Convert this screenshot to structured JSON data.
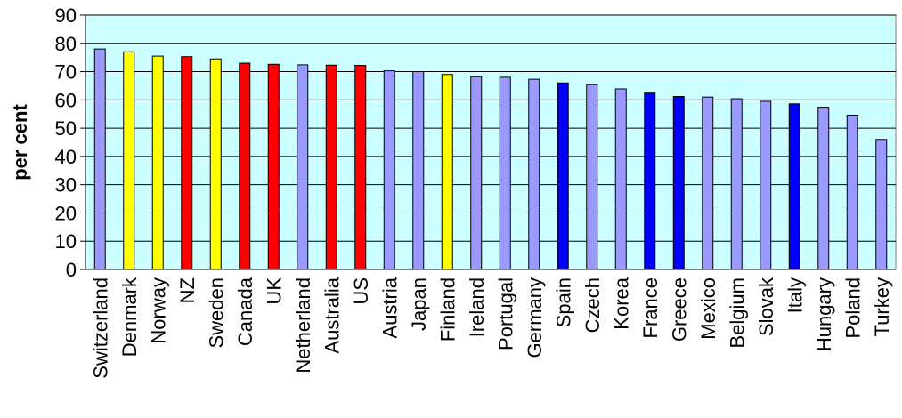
{
  "chart_data": {
    "type": "bar",
    "title": "",
    "xlabel": "",
    "ylabel": "per cent",
    "ylim": [
      0,
      90
    ],
    "yticks": [
      "0",
      "10",
      "20",
      "30",
      "40",
      "50",
      "60",
      "70",
      "80",
      "90"
    ],
    "grid": true,
    "plot_background": "#ccffff",
    "categories": [
      "Switzerland",
      "Denmark",
      "Norway",
      "NZ",
      "Sweden",
      "Canada",
      "UK",
      "Netherland",
      "Australia",
      "US",
      "Austria",
      "Japan",
      "Finland",
      "Ireland",
      "Portugal",
      "Germany",
      "Spain",
      "Czech",
      "Korea",
      "France",
      "Greece",
      "Mexico",
      "Belgium",
      "Slovak",
      "Italy",
      "Hungary",
      "Poland",
      "Turkey"
    ],
    "values": [
      78,
      77,
      75.5,
      75.3,
      74.5,
      73,
      72.6,
      72.4,
      72.3,
      72.2,
      70.3,
      70,
      69,
      68.2,
      68,
      67.3,
      66,
      65.4,
      63.9,
      62.4,
      61.2,
      61,
      60.4,
      59.5,
      58.6,
      57.4,
      54.6,
      46
    ],
    "bar_colors": [
      "#9999ff",
      "#ffff00",
      "#ffff00",
      "#ff0000",
      "#ffff00",
      "#ff0000",
      "#ff0000",
      "#9999ff",
      "#ff0000",
      "#ff0000",
      "#9999ff",
      "#9999ff",
      "#ffff00",
      "#9999ff",
      "#9999ff",
      "#9999ff",
      "#0000ff",
      "#9999ff",
      "#9999ff",
      "#0000ff",
      "#0000ff",
      "#9999ff",
      "#9999ff",
      "#9999ff",
      "#0000ff",
      "#9999ff",
      "#9999ff",
      "#9999ff"
    ]
  }
}
